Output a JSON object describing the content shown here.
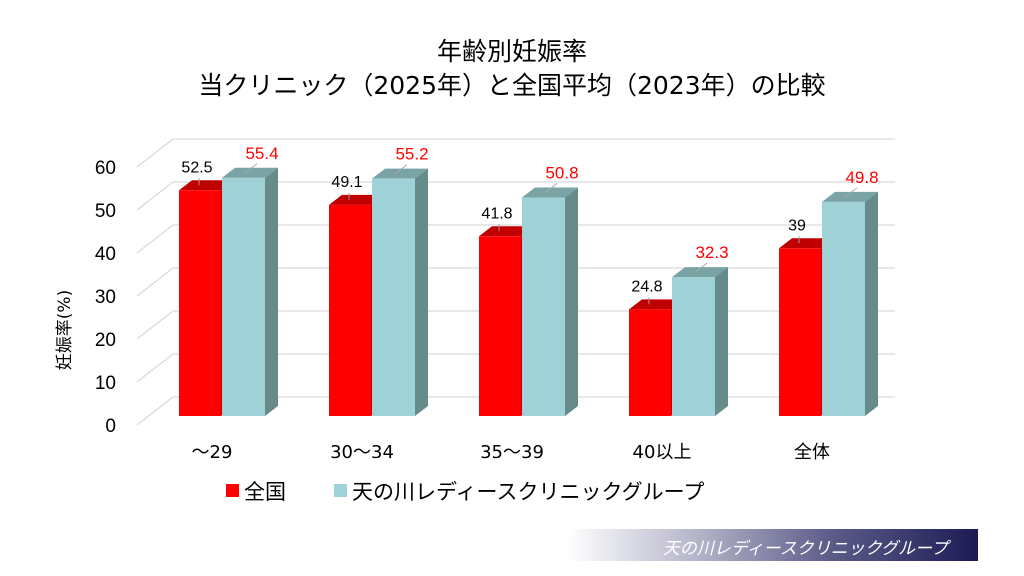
{
  "title_line1": "年齢別妊娠率",
  "title_line2": "当クリニック（2025年）と全国平均（2023年）の比較",
  "footer_brand": "天の川レディースクリニックグループ",
  "colors": {
    "national": "#ff0000",
    "clinic": "#9ed2d6",
    "clinic_label": "#ff0000",
    "national_label": "#000000"
  },
  "chart_data": {
    "type": "bar",
    "title": "年齢別妊娠率 当クリニック（2025年）と全国平均（2023年）の比較",
    "xlabel": "",
    "ylabel": "妊娠率(%)",
    "ylim": [
      0,
      60
    ],
    "yticks": [
      "0",
      "10",
      "20",
      "30",
      "40",
      "50",
      "60"
    ],
    "categories": [
      "～29",
      "30～34",
      "35～39",
      "40以上",
      "全体"
    ],
    "series": [
      {
        "name": "全国",
        "values": [
          52.5,
          49.1,
          41.8,
          24.8,
          39
        ],
        "labels": [
          "52.5",
          "49.1",
          "41.8",
          "24.8",
          "39"
        ]
      },
      {
        "name": "天の川レディースクリニックグループ",
        "values": [
          55.4,
          55.2,
          50.8,
          32.3,
          49.8
        ],
        "labels": [
          "55.4",
          "55.2",
          "50.8",
          "32.3",
          "49.8"
        ]
      }
    ],
    "legend": "bottom",
    "grid": true
  }
}
